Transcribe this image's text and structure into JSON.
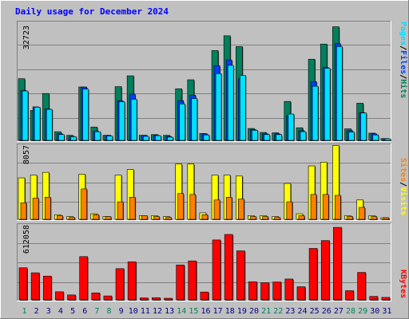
{
  "title": "Daily usage for December 2024",
  "colors": {
    "background": "#c0c0c0",
    "hits": "#00805c",
    "files": "#0040ff",
    "pages": "#00e0ff",
    "visits": "#ffff00",
    "sites": "#ff8000",
    "kbytes": "#ff0000",
    "title": "#0000ff",
    "weekend_label": "#00805c",
    "weekday_label": "#000080",
    "legend_separator": "#000000"
  },
  "legends": {
    "top": [
      {
        "text": "Pages",
        "color": "#00e0ff"
      },
      {
        "text": "/",
        "color": "#000000"
      },
      {
        "text": "Files",
        "color": "#0040ff"
      },
      {
        "text": "/",
        "color": "#000000"
      },
      {
        "text": "Hits",
        "color": "#00805c"
      }
    ],
    "middle": [
      {
        "text": "Sites",
        "color": "#ff8000"
      },
      {
        "text": "/",
        "color": "#000000"
      },
      {
        "text": "Visits",
        "color": "#ffff00"
      }
    ],
    "bottom": [
      {
        "text": "KBytes",
        "color": "#ff0000"
      }
    ]
  },
  "chart_data": [
    {
      "type": "bar",
      "title": "Daily usage for December 2024",
      "x": [
        1,
        2,
        3,
        4,
        5,
        6,
        7,
        8,
        9,
        10,
        11,
        12,
        13,
        14,
        15,
        16,
        17,
        18,
        19,
        20,
        21,
        22,
        23,
        24,
        25,
        26,
        27,
        28,
        29,
        30,
        31
      ],
      "weekend_days": [
        1,
        7,
        8,
        14,
        15,
        21,
        22,
        28,
        29
      ],
      "ymax_label": "32723",
      "ylim": [
        0,
        32723
      ],
      "series": [
        {
          "name": "Hits",
          "values": [
            17100,
            8300,
            13000,
            2400,
            1400,
            14800,
            3700,
            1400,
            14900,
            17900,
            1400,
            1600,
            1400,
            14300,
            16800,
            1900,
            24900,
            29000,
            26000,
            3300,
            2200,
            2100,
            10800,
            3500,
            22500,
            26700,
            31500,
            3200,
            10300,
            2000,
            500
          ]
        },
        {
          "name": "Files",
          "values": [
            13800,
            9300,
            8700,
            1800,
            1100,
            14800,
            2500,
            1400,
            11000,
            12800,
            1400,
            1400,
            1100,
            11000,
            12500,
            1800,
            20700,
            22300,
            17100,
            3000,
            1800,
            1800,
            6800,
            2700,
            16300,
            20200,
            26800,
            2700,
            7700,
            1800,
            500
          ]
        },
        {
          "name": "Pages",
          "values": [
            13700,
            9200,
            8600,
            1600,
            1000,
            14200,
            2400,
            1200,
            10700,
            11400,
            1100,
            1300,
            900,
            10100,
            11600,
            1500,
            18500,
            20800,
            18000,
            2800,
            1600,
            1600,
            7300,
            2400,
            15000,
            20000,
            26000,
            2300,
            7600,
            1500,
            400
          ]
        }
      ]
    },
    {
      "type": "bar",
      "x": [
        1,
        2,
        3,
        4,
        5,
        6,
        7,
        8,
        9,
        10,
        11,
        12,
        13,
        14,
        15,
        16,
        17,
        18,
        19,
        20,
        21,
        22,
        23,
        24,
        25,
        26,
        27,
        28,
        29,
        30,
        31
      ],
      "ymax_label": "8057",
      "ylim": [
        0,
        8057
      ],
      "series": [
        {
          "name": "Visits",
          "values": [
            4500,
            4800,
            5100,
            500,
            300,
            4900,
            600,
            300,
            4800,
            5400,
            400,
            400,
            300,
            6000,
            6000,
            700,
            4800,
            4800,
            4700,
            400,
            400,
            300,
            3900,
            600,
            5800,
            6200,
            8000,
            400,
            2100,
            400,
            100
          ]
        },
        {
          "name": "Sites",
          "values": [
            1800,
            2300,
            2400,
            400,
            200,
            3300,
            500,
            300,
            1900,
            2400,
            400,
            300,
            200,
            2800,
            2700,
            500,
            2100,
            2400,
            2200,
            300,
            300,
            200,
            1900,
            400,
            2700,
            2700,
            2600,
            300,
            1300,
            300,
            100
          ]
        }
      ]
    },
    {
      "type": "bar",
      "x": [
        1,
        2,
        3,
        4,
        5,
        6,
        7,
        8,
        9,
        10,
        11,
        12,
        13,
        14,
        15,
        16,
        17,
        18,
        19,
        20,
        21,
        22,
        23,
        24,
        25,
        26,
        27,
        28,
        29,
        30,
        31
      ],
      "ymax_label": "612058",
      "ylim": [
        0,
        612058
      ],
      "series": [
        {
          "name": "KBytes",
          "values": [
            262000,
            221000,
            194000,
            66000,
            40000,
            353000,
            57000,
            32000,
            255000,
            311000,
            16000,
            18000,
            12000,
            285000,
            318000,
            64000,
            489000,
            534000,
            400000,
            148000,
            140000,
            146000,
            170000,
            107000,
            420000,
            484000,
            592000,
            75000,
            224000,
            28000,
            20000
          ]
        }
      ]
    }
  ]
}
